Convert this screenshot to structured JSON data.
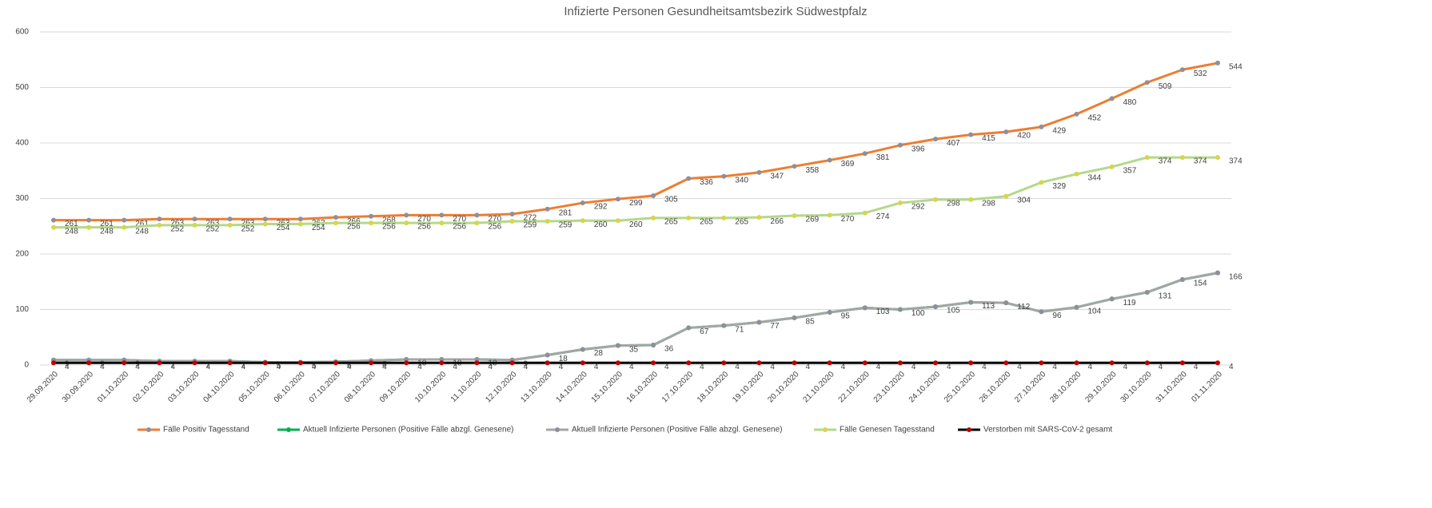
{
  "chart_data": {
    "type": "line",
    "title": "Infizierte Personen Gesundheitsamtsbezirk Südwestpfalz",
    "categories": [
      "29.09.2020",
      "30.09.2020",
      "01.10.2020",
      "02.10.2020",
      "03.10.2020",
      "04.10.2020",
      "05.10.2020",
      "06.10.2020",
      "07.10.2020",
      "08.10.2020",
      "09.10.2020",
      "10.10.2020",
      "11.10.2020",
      "12.10.2020",
      "13.10.2020",
      "14.10.2020",
      "15.10.2020",
      "16.10.2020",
      "17.10.2020",
      "18.10.2020",
      "19.10.2020",
      "20.10.2020",
      "21.10.2020",
      "22.10.2020",
      "23.10.2020",
      "24.10.2020",
      "25.10.2020",
      "26.10.2020",
      "27.10.2020",
      "28.10.2020",
      "29.10.2020",
      "30.10.2020",
      "31.10.2020",
      "01.11.2020"
    ],
    "series": [
      {
        "name": "Fälle Positiv Tagesstand",
        "color": "#ed7d31",
        "marker_color": "#8f8f9a",
        "values": [
          261,
          261,
          261,
          263,
          263,
          263,
          263,
          263,
          266,
          268,
          270,
          270,
          270,
          272,
          281,
          292,
          299,
          305,
          336,
          340,
          347,
          358,
          369,
          381,
          396,
          407,
          415,
          420,
          429,
          452,
          480,
          509,
          532,
          544
        ]
      },
      {
        "name": "Aktuell Infizierte Personen (Positive Fälle abzgl. Genesene)",
        "color": "#00b050",
        "marker_color": "#00b050",
        "values": [
          9,
          9,
          9,
          7,
          7,
          7,
          5,
          5,
          6,
          8,
          10,
          10,
          10,
          9,
          18,
          28,
          35,
          36,
          67,
          71,
          77,
          85,
          95,
          103,
          100,
          105,
          113,
          112,
          96,
          104,
          119,
          131,
          154,
          166
        ]
      },
      {
        "name": "Aktuell Infizierte Personen (Positive Fälle abzgl. Genesene)",
        "color": "#a5a5a5",
        "marker_color": "#8f8f9a",
        "values": [
          9,
          9,
          9,
          7,
          7,
          7,
          5,
          5,
          6,
          8,
          10,
          10,
          10,
          9,
          18,
          28,
          35,
          36,
          67,
          71,
          77,
          85,
          95,
          103,
          100,
          105,
          113,
          112,
          96,
          104,
          119,
          131,
          154,
          166
        ]
      },
      {
        "name": "Fälle Genesen Tagesstand",
        "color": "#b4d88a",
        "marker_color": "#d6d64a",
        "values": [
          248,
          248,
          248,
          252,
          252,
          252,
          254,
          254,
          256,
          256,
          256,
          256,
          256,
          259,
          259,
          260,
          260,
          265,
          265,
          265,
          266,
          269,
          270,
          274,
          292,
          298,
          298,
          304,
          329,
          344,
          357,
          374,
          374,
          374
        ]
      },
      {
        "name": "Verstorben mit SARS-CoV-2 gesamt",
        "color": "#000000",
        "marker_color": "#c00000",
        "values": [
          4,
          4,
          4,
          4,
          4,
          4,
          4,
          4,
          4,
          4,
          4,
          4,
          4,
          4,
          4,
          4,
          4,
          4,
          4,
          4,
          4,
          4,
          4,
          4,
          4,
          4,
          4,
          4,
          4,
          4,
          4,
          4,
          4,
          4
        ]
      }
    ],
    "ylim": [
      0,
      600
    ],
    "yticks": [
      0,
      100,
      200,
      300,
      400,
      500,
      600
    ],
    "grid": true,
    "legend": "bottom"
  }
}
